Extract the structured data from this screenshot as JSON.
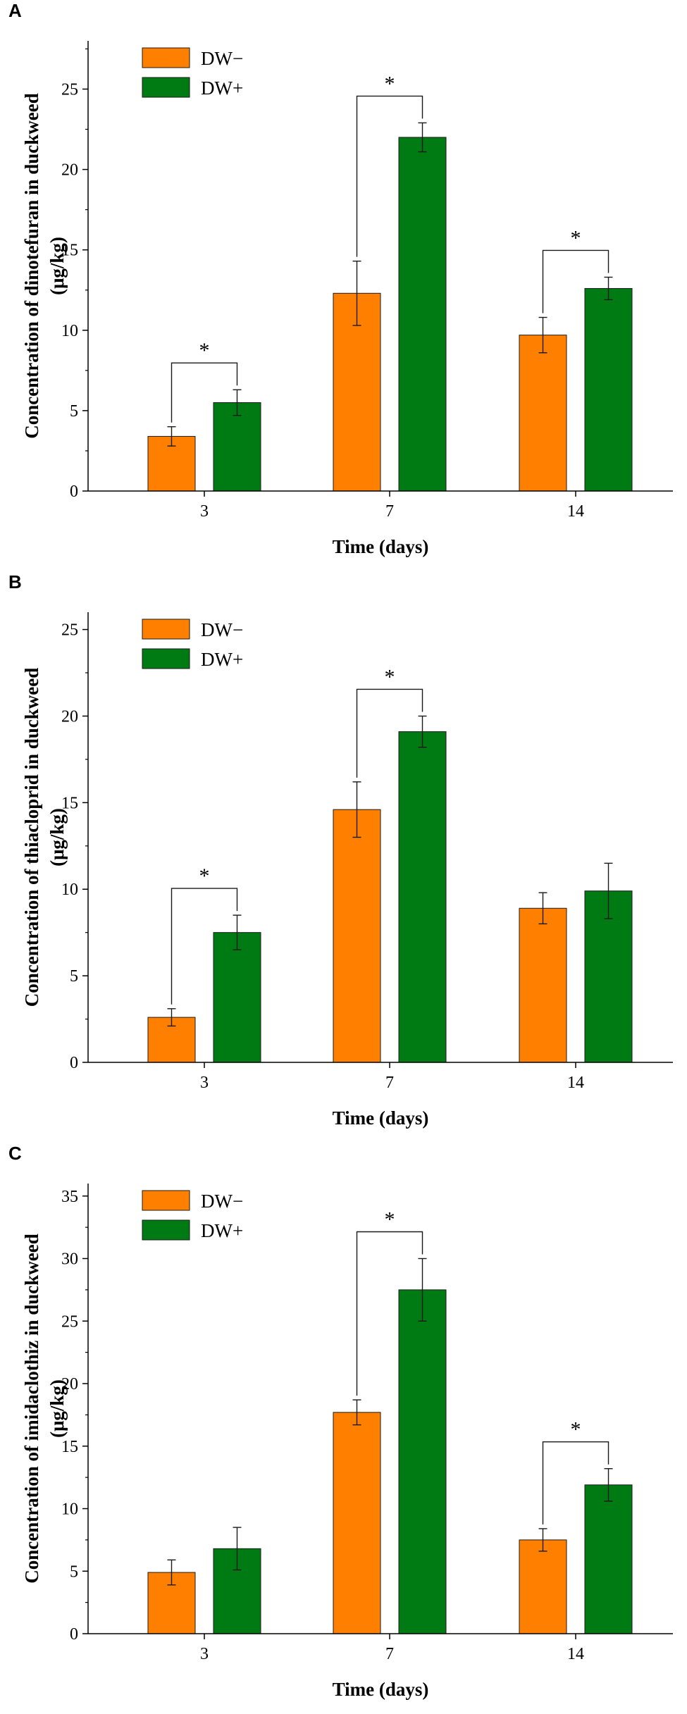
{
  "colors": {
    "dw_minus": "#ff8000",
    "dw_plus": "#007a12",
    "axis": "#000000"
  },
  "chart_data": [
    {
      "panel_label": "A",
      "type": "bar",
      "categories": [
        "3",
        "7",
        "14"
      ],
      "xlabel": "Time (days)",
      "ylabel": "Concentration of dinotefuran in duckweed",
      "ylabel_unit": "(μg/kg)",
      "ylim": [
        0,
        28
      ],
      "yticks": [
        0,
        5,
        10,
        15,
        20,
        25
      ],
      "ytick_labels": [
        "0",
        "5",
        "10",
        "15",
        "20",
        "25"
      ],
      "legend": [
        "DW−",
        "DW+"
      ],
      "series": [
        {
          "name": "DW−",
          "values": [
            3.4,
            12.3,
            9.7
          ],
          "errors": [
            0.6,
            2.0,
            1.1
          ]
        },
        {
          "name": "DW+",
          "values": [
            5.5,
            22.0,
            12.6
          ],
          "errors": [
            0.8,
            0.9,
            0.7
          ]
        }
      ],
      "significance": [
        {
          "category_index": 0,
          "label": "*"
        },
        {
          "category_index": 1,
          "label": "*"
        },
        {
          "category_index": 2,
          "label": "*"
        }
      ]
    },
    {
      "panel_label": "B",
      "type": "bar",
      "categories": [
        "3",
        "7",
        "14"
      ],
      "xlabel": "Time (days)",
      "ylabel": "Concentration of thiacloprid in duckweed",
      "ylabel_unit": "(μg/kg)",
      "ylim": [
        0,
        26
      ],
      "yticks": [
        0,
        5,
        10,
        15,
        20,
        25
      ],
      "ytick_labels": [
        "0",
        "5",
        "10",
        "15",
        "20",
        "25"
      ],
      "legend": [
        "DW−",
        "DW+"
      ],
      "series": [
        {
          "name": "DW−",
          "values": [
            2.6,
            14.6,
            8.9
          ],
          "errors": [
            0.5,
            1.6,
            0.9
          ]
        },
        {
          "name": "DW+",
          "values": [
            7.5,
            19.1,
            9.9
          ],
          "errors": [
            1.0,
            0.9,
            1.6
          ]
        }
      ],
      "significance": [
        {
          "category_index": 0,
          "label": "*"
        },
        {
          "category_index": 1,
          "label": "*"
        }
      ]
    },
    {
      "panel_label": "C",
      "type": "bar",
      "categories": [
        "3",
        "7",
        "14"
      ],
      "xlabel": "Time (days)",
      "ylabel": "Concentration of imidaclothiz in duckweed",
      "ylabel_unit": "(μg/kg)",
      "ylim": [
        0,
        36
      ],
      "yticks": [
        0,
        5,
        10,
        15,
        20,
        25,
        30,
        35
      ],
      "ytick_labels": [
        "0",
        "5",
        "10",
        "15",
        "20",
        "25",
        "30",
        "35"
      ],
      "legend": [
        "DW−",
        "DW+"
      ],
      "series": [
        {
          "name": "DW−",
          "values": [
            4.9,
            17.7,
            7.5
          ],
          "errors": [
            1.0,
            1.0,
            0.9
          ]
        },
        {
          "name": "DW+",
          "values": [
            6.8,
            27.5,
            11.9
          ],
          "errors": [
            1.7,
            2.5,
            1.3
          ]
        }
      ],
      "significance": [
        {
          "category_index": 1,
          "label": "*"
        },
        {
          "category_index": 2,
          "label": "*"
        }
      ]
    }
  ]
}
